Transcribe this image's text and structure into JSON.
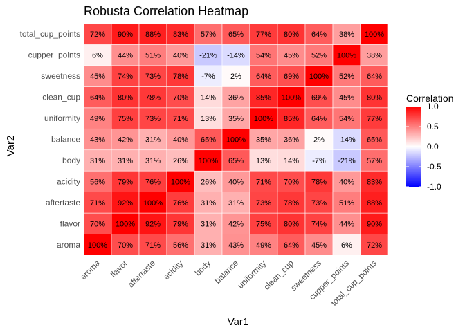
{
  "chart_data": {
    "type": "heatmap",
    "title": "Robusta Correlation Heatmap",
    "xlabel": "Var1",
    "ylabel": "Var2",
    "x_categories": [
      "aroma",
      "flavor",
      "aftertaste",
      "acidity",
      "body",
      "balance",
      "uniformity",
      "clean_cup",
      "sweetness",
      "cupper_points",
      "total_cup_points"
    ],
    "y_categories": [
      "aroma",
      "flavor",
      "aftertaste",
      "acidity",
      "body",
      "balance",
      "uniformity",
      "clean_cup",
      "sweetness",
      "cupper_points",
      "total_cup_points"
    ],
    "values": [
      [
        100,
        70,
        71,
        56,
        31,
        43,
        49,
        64,
        45,
        6,
        72
      ],
      [
        70,
        100,
        92,
        79,
        31,
        42,
        75,
        80,
        74,
        44,
        90
      ],
      [
        71,
        92,
        100,
        76,
        31,
        31,
        73,
        78,
        73,
        51,
        88
      ],
      [
        56,
        79,
        76,
        100,
        26,
        40,
        71,
        70,
        78,
        40,
        83
      ],
      [
        31,
        31,
        31,
        26,
        100,
        65,
        13,
        14,
        -7,
        -21,
        57
      ],
      [
        43,
        42,
        31,
        40,
        65,
        100,
        35,
        36,
        2,
        -14,
        65
      ],
      [
        49,
        75,
        73,
        71,
        13,
        35,
        100,
        85,
        64,
        54,
        77
      ],
      [
        64,
        80,
        78,
        70,
        14,
        36,
        85,
        100,
        69,
        45,
        80
      ],
      [
        45,
        74,
        73,
        78,
        -7,
        2,
        64,
        69,
        100,
        52,
        64
      ],
      [
        6,
        44,
        51,
        40,
        -21,
        -14,
        54,
        45,
        52,
        100,
        38
      ],
      [
        72,
        90,
        88,
        83,
        57,
        65,
        77,
        80,
        64,
        38,
        100
      ]
    ],
    "value_suffix": "%",
    "legend": {
      "title": "Correlation",
      "ticks": [
        "1.0",
        "0.5",
        "0.0",
        "-0.5",
        "-1.0"
      ],
      "placement": "right",
      "range": [
        -1,
        1
      ]
    },
    "colors": {
      "low": "#0000ff",
      "mid": "#ffffff",
      "high": "#ff0000"
    },
    "grid": false
  }
}
